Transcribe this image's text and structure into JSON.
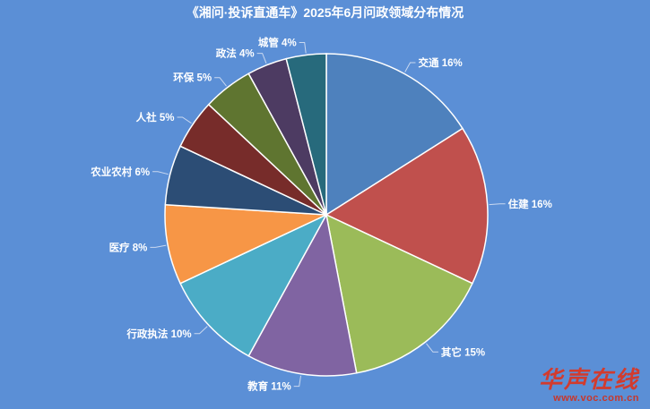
{
  "chart_data": {
    "type": "pie",
    "title": "《湘问·投诉直通车》2025年6月问政领域分布情况",
    "slices": [
      {
        "label": "交通",
        "value": 16,
        "percent_text": "16%",
        "color": "#4E81BD"
      },
      {
        "label": "住建",
        "value": 16,
        "percent_text": "16%",
        "color": "#C0504D"
      },
      {
        "label": "其它",
        "value": 15,
        "percent_text": "15%",
        "color": "#9BBB59"
      },
      {
        "label": "教育",
        "value": 11,
        "percent_text": "11%",
        "color": "#8064A2"
      },
      {
        "label": "行政执法",
        "value": 10,
        "percent_text": "10%",
        "color": "#4BACC6"
      },
      {
        "label": "医疗",
        "value": 8,
        "percent_text": "8%",
        "color": "#F79646"
      },
      {
        "label": "农业农村",
        "value": 6,
        "percent_text": "6%",
        "color": "#2C4D75"
      },
      {
        "label": "人社",
        "value": 5,
        "percent_text": "5%",
        "color": "#772C2A"
      },
      {
        "label": "环保",
        "value": 5,
        "percent_text": "5%",
        "color": "#5F7530"
      },
      {
        "label": "政法",
        "value": 4,
        "percent_text": "4%",
        "color": "#4D3B62"
      },
      {
        "label": "城管",
        "value": 4,
        "percent_text": "4%",
        "color": "#276A7C"
      }
    ],
    "start_angle": "12 o'clock",
    "direction": "clockwise",
    "legend": "none"
  },
  "watermark": {
    "logo_text": "华声在线",
    "url_text": "www.voc.com.cn"
  }
}
